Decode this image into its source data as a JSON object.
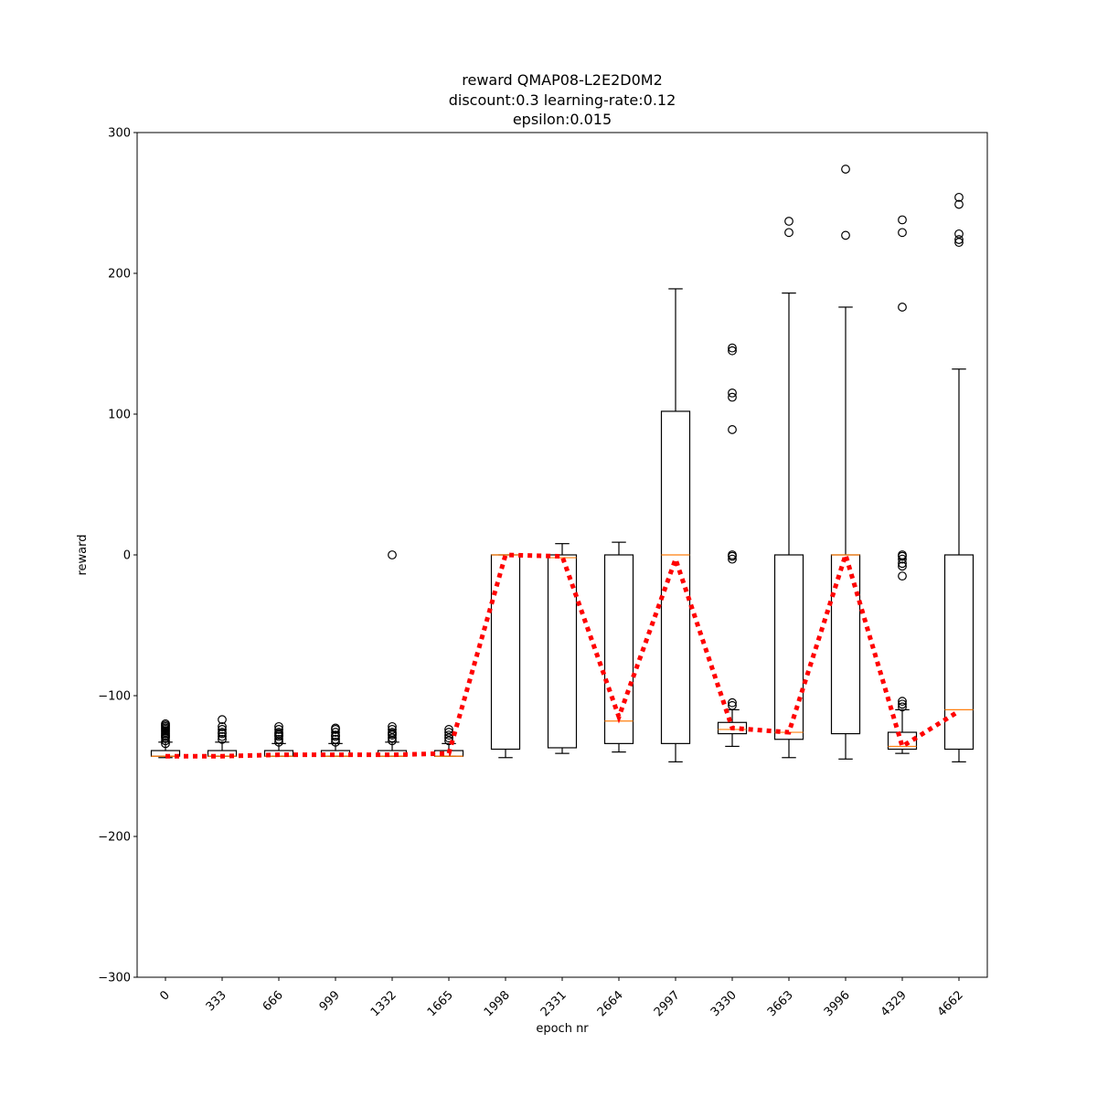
{
  "chart_data": {
    "type": "boxplot",
    "title": [
      "reward QMAP08-L2E2D0M2",
      "discount:0.3 learning-rate:0.12",
      "epsilon:0.015"
    ],
    "xlabel": "epoch nr",
    "ylabel": "reward",
    "ylim": [
      -300,
      300
    ],
    "yticks": [
      -300,
      -200,
      -100,
      0,
      100,
      200,
      300
    ],
    "grid": false,
    "categories": [
      "0",
      "333",
      "666",
      "999",
      "1332",
      "1665",
      "1998",
      "2331",
      "2664",
      "2997",
      "3330",
      "3663",
      "3996",
      "4329",
      "4662"
    ],
    "boxes": [
      {
        "whisker_low": -144,
        "q1": -143,
        "median": -143,
        "q3": -139,
        "whisker_high": -133,
        "outliers": [
          -134,
          -132,
          -130,
          -129,
          -128,
          -127,
          -126,
          -125,
          -124,
          -123,
          -122,
          -121,
          -120
        ]
      },
      {
        "whisker_low": -143,
        "q1": -143,
        "median": -143,
        "q3": -139,
        "whisker_high": -133,
        "outliers": [
          -131,
          -129,
          -127,
          -126,
          -124,
          -122,
          -117
        ]
      },
      {
        "whisker_low": -143,
        "q1": -143,
        "median": -143,
        "q3": -139,
        "whisker_high": -134,
        "outliers": [
          -133,
          -131,
          -129,
          -128,
          -127,
          -126,
          -124,
          -122
        ]
      },
      {
        "whisker_low": -143,
        "q1": -143,
        "median": -143,
        "q3": -139,
        "whisker_high": -134,
        "outliers": [
          -133,
          -131,
          -129,
          -128,
          -126,
          -124,
          -123
        ]
      },
      {
        "whisker_low": -143,
        "q1": -143,
        "median": -143,
        "q3": -139,
        "whisker_high": -133,
        "outliers": [
          -132,
          -130,
          -128,
          -127,
          -126,
          -124,
          -122,
          0
        ]
      },
      {
        "whisker_low": -143,
        "q1": -143,
        "median": -143,
        "q3": -139,
        "whisker_high": -134,
        "outliers": [
          -132,
          -130,
          -128,
          -126,
          -124
        ]
      },
      {
        "whisker_low": -144,
        "q1": -138,
        "median": 0,
        "q3": 0,
        "whisker_high": 0,
        "outliers": []
      },
      {
        "whisker_low": -141,
        "q1": -137,
        "median": -2,
        "q3": 0,
        "whisker_high": 8,
        "outliers": []
      },
      {
        "whisker_low": -140,
        "q1": -134,
        "median": -118,
        "q3": 0,
        "whisker_high": 9,
        "outliers": []
      },
      {
        "whisker_low": -147,
        "q1": -134,
        "median": 0,
        "q3": 102,
        "whisker_high": 189,
        "outliers": []
      },
      {
        "whisker_low": -136,
        "q1": -127,
        "median": -124,
        "q3": -119,
        "whisker_high": -110,
        "outliers": [
          -107,
          -105,
          -3,
          -1,
          0,
          89,
          112,
          115,
          145,
          147
        ]
      },
      {
        "whisker_low": -144,
        "q1": -131,
        "median": -126,
        "q3": 0,
        "whisker_high": 186,
        "outliers": [
          229,
          237
        ]
      },
      {
        "whisker_low": -145,
        "q1": -127,
        "median": 0,
        "q3": 0,
        "whisker_high": 176,
        "outliers": [
          227,
          274
        ]
      },
      {
        "whisker_low": -141,
        "q1": -138,
        "median": -136,
        "q3": -126,
        "whisker_high": -110,
        "outliers": [
          -108,
          -106,
          -104,
          -15,
          -8,
          -6,
          -3,
          -1,
          0,
          176,
          229,
          238
        ]
      },
      {
        "whisker_low": -147,
        "q1": -138,
        "median": -110,
        "q3": 0,
        "whisker_high": 132,
        "outliers": [
          222,
          224,
          228,
          249,
          254
        ]
      }
    ],
    "mean_line": {
      "color": "#ff0000",
      "style": "dotted",
      "values": [
        -143,
        -143,
        -142,
        -142,
        -142,
        -141,
        0,
        -1,
        -115,
        -3,
        -123,
        -126,
        0,
        -136,
        -111
      ]
    },
    "colors": {
      "box": "#000000",
      "median": "#ff7f0e",
      "mean_line": "#ff0000",
      "outlier": "#000000"
    }
  }
}
